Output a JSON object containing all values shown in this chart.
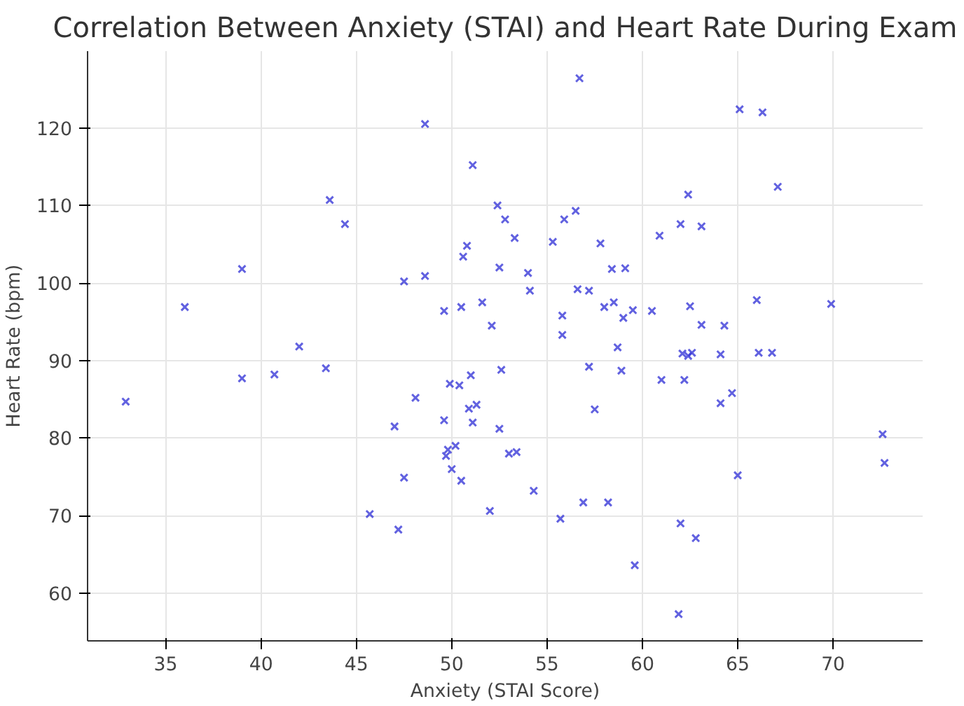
{
  "chart_data": {
    "type": "scatter",
    "title": "Correlation Between Anxiety (STAI) and Heart Rate During Exam",
    "xlabel": "Anxiety (STAI Score)",
    "ylabel": "Heart Rate (bpm)",
    "x": [
      32.9,
      36.0,
      39.0,
      39.0,
      40.7,
      42.0,
      43.4,
      43.6,
      44.4,
      45.7,
      47.0,
      47.2,
      47.5,
      47.5,
      48.1,
      48.6,
      48.6,
      49.6,
      49.6,
      49.7,
      49.8,
      49.9,
      50.0,
      50.2,
      50.4,
      50.5,
      50.5,
      50.6,
      50.8,
      50.9,
      51.0,
      51.1,
      51.1,
      51.3,
      51.6,
      52.0,
      52.1,
      52.4,
      52.5,
      52.5,
      52.6,
      52.8,
      53.0,
      53.3,
      53.4,
      54.0,
      54.1,
      54.3,
      55.3,
      55.7,
      55.8,
      55.8,
      55.9,
      56.5,
      56.6,
      56.7,
      56.9,
      57.2,
      57.2,
      57.5,
      57.8,
      58.0,
      58.2,
      58.4,
      58.5,
      58.7,
      58.9,
      59.0,
      59.1,
      59.5,
      59.6,
      60.5,
      60.9,
      61.0,
      61.9,
      62.0,
      62.0,
      62.1,
      62.2,
      62.4,
      62.4,
      62.5,
      62.6,
      62.8,
      63.1,
      63.1,
      64.1,
      64.1,
      64.3,
      64.7,
      65.0,
      65.1,
      66.0,
      66.1,
      66.3,
      66.8,
      67.1,
      69.9,
      72.6,
      72.7
    ],
    "series": [
      {
        "color": "#3a3ad8",
        "values": [
          84.7,
          96.9,
          101.8,
          87.7,
          88.2,
          91.8,
          89.0,
          110.7,
          107.6,
          70.2,
          81.5,
          68.2,
          74.9,
          100.2,
          85.2,
          100.9,
          120.5,
          96.4,
          82.3,
          77.7,
          78.5,
          87.0,
          76.0,
          79.0,
          86.8,
          74.5,
          96.9,
          103.4,
          104.8,
          83.8,
          88.1,
          115.2,
          82.0,
          84.3,
          97.5,
          70.6,
          94.5,
          110.0,
          102.0,
          81.2,
          88.8,
          108.2,
          78.0,
          105.8,
          78.2,
          101.3,
          99.0,
          73.2,
          105.3,
          69.6,
          95.8,
          93.3,
          108.2,
          109.3,
          99.2,
          126.4,
          71.7,
          99.0,
          89.2,
          83.7,
          105.1,
          96.9,
          71.7,
          101.8,
          97.5,
          91.7,
          88.7,
          95.5,
          101.9,
          96.5,
          63.6,
          96.4,
          106.1,
          87.5,
          57.3,
          107.6,
          69.0,
          90.9,
          87.5,
          111.4,
          90.6,
          97.0,
          91.0,
          67.1,
          107.3,
          94.6,
          90.8,
          84.5,
          94.5,
          85.8,
          75.2,
          122.4,
          97.8,
          91.0,
          122.0,
          91.0,
          112.4,
          97.3,
          80.5,
          76.8
        ]
      }
    ],
    "xlim": [
      30.9,
      74.7
    ],
    "ylim": [
      53.85,
      129.9
    ],
    "xticks": [
      35,
      40,
      45,
      50,
      55,
      60,
      65,
      70
    ],
    "yticks": [
      60,
      70,
      80,
      90,
      100,
      110,
      120
    ],
    "grid": true,
    "marker": "cross"
  }
}
